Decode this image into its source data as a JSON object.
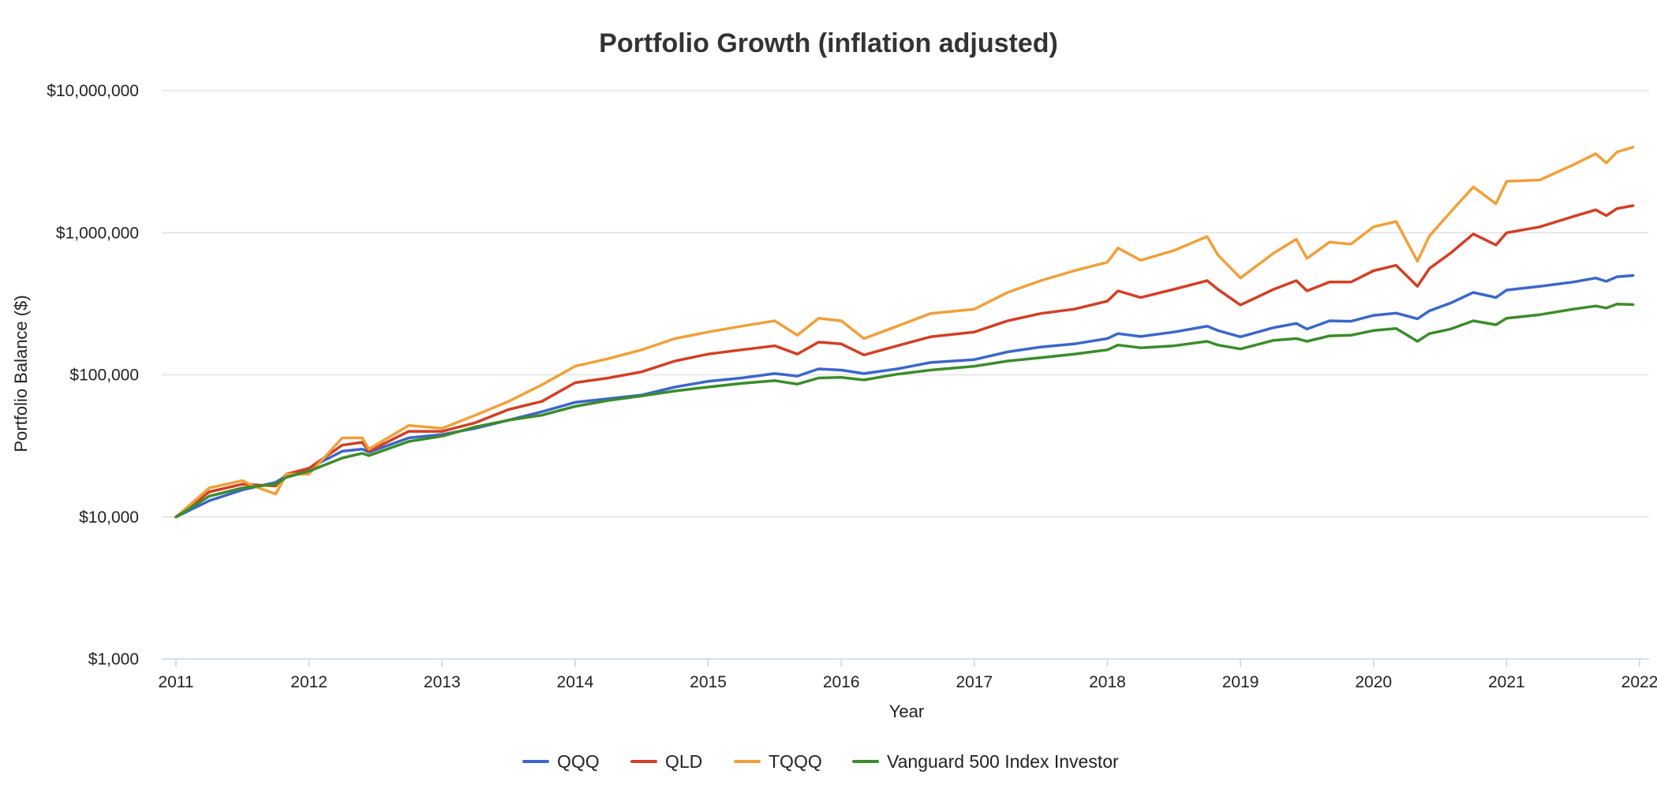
{
  "chart_data": {
    "type": "line",
    "title": "Portfolio Growth (inflation adjusted)",
    "xlabel": "Year",
    "ylabel": "Portfolio Balance ($)",
    "yscale": "log",
    "ylim": [
      1000,
      10000000
    ],
    "xlim": [
      2011,
      2022
    ],
    "x_ticks": [
      2011,
      2012,
      2013,
      2014,
      2015,
      2016,
      2017,
      2018,
      2019,
      2020,
      2021,
      2022
    ],
    "x_tick_labels": [
      "2011",
      "2012",
      "2013",
      "2014",
      "2015",
      "2016",
      "2017",
      "2018",
      "2019",
      "2020",
      "2021",
      "2022"
    ],
    "y_ticks": [
      1000,
      10000,
      100000,
      1000000,
      10000000
    ],
    "y_tick_labels": [
      "$1,000",
      "$10,000",
      "$100,000",
      "$1,000,000",
      "$10,000,000"
    ],
    "grid": true,
    "legend_position": "bottom",
    "series": [
      {
        "name": "QQQ",
        "color": "#3b67c9",
        "points": [
          [
            2011.0,
            10000
          ],
          [
            2011.25,
            13000
          ],
          [
            2011.5,
            15500
          ],
          [
            2011.75,
            17500
          ],
          [
            2011.83,
            19500
          ],
          [
            2012.0,
            22000
          ],
          [
            2012.25,
            29000
          ],
          [
            2012.4,
            30000
          ],
          [
            2012.45,
            28500
          ],
          [
            2012.75,
            36000
          ],
          [
            2013.0,
            38000
          ],
          [
            2013.25,
            42000
          ],
          [
            2013.5,
            48000
          ],
          [
            2013.75,
            55000
          ],
          [
            2014.0,
            64000
          ],
          [
            2014.25,
            68000
          ],
          [
            2014.5,
            72000
          ],
          [
            2014.75,
            82000
          ],
          [
            2015.0,
            90000
          ],
          [
            2015.25,
            95000
          ],
          [
            2015.5,
            102000
          ],
          [
            2015.67,
            98000
          ],
          [
            2015.83,
            110000
          ],
          [
            2016.0,
            108000
          ],
          [
            2016.17,
            102000
          ],
          [
            2016.42,
            110000
          ],
          [
            2016.67,
            122000
          ],
          [
            2017.0,
            128000
          ],
          [
            2017.25,
            145000
          ],
          [
            2017.5,
            157000
          ],
          [
            2017.75,
            165000
          ],
          [
            2018.0,
            180000
          ],
          [
            2018.08,
            195000
          ],
          [
            2018.25,
            186000
          ],
          [
            2018.5,
            200000
          ],
          [
            2018.75,
            220000
          ],
          [
            2018.83,
            205000
          ],
          [
            2019.0,
            185000
          ],
          [
            2019.25,
            215000
          ],
          [
            2019.42,
            230000
          ],
          [
            2019.5,
            210000
          ],
          [
            2019.67,
            240000
          ],
          [
            2019.83,
            238000
          ],
          [
            2020.0,
            262000
          ],
          [
            2020.17,
            272000
          ],
          [
            2020.33,
            248000
          ],
          [
            2020.42,
            282000
          ],
          [
            2020.58,
            320000
          ],
          [
            2020.75,
            380000
          ],
          [
            2020.92,
            350000
          ],
          [
            2021.0,
            395000
          ],
          [
            2021.25,
            420000
          ],
          [
            2021.5,
            450000
          ],
          [
            2021.67,
            480000
          ],
          [
            2021.75,
            455000
          ],
          [
            2021.83,
            490000
          ],
          [
            2021.95,
            500000
          ]
        ]
      },
      {
        "name": "QLD",
        "color": "#d23f24",
        "points": [
          [
            2011.0,
            10000
          ],
          [
            2011.25,
            15000
          ],
          [
            2011.5,
            17000
          ],
          [
            2011.75,
            16500
          ],
          [
            2011.83,
            20000
          ],
          [
            2012.0,
            22000
          ],
          [
            2012.25,
            32000
          ],
          [
            2012.4,
            33500
          ],
          [
            2012.45,
            29000
          ],
          [
            2012.75,
            40000
          ],
          [
            2013.0,
            40000
          ],
          [
            2013.25,
            46000
          ],
          [
            2013.5,
            57000
          ],
          [
            2013.75,
            65000
          ],
          [
            2014.0,
            88000
          ],
          [
            2014.25,
            95000
          ],
          [
            2014.5,
            105000
          ],
          [
            2014.75,
            125000
          ],
          [
            2015.0,
            140000
          ],
          [
            2015.25,
            150000
          ],
          [
            2015.5,
            160000
          ],
          [
            2015.67,
            140000
          ],
          [
            2015.83,
            170000
          ],
          [
            2016.0,
            165000
          ],
          [
            2016.17,
            138000
          ],
          [
            2016.42,
            160000
          ],
          [
            2016.67,
            185000
          ],
          [
            2017.0,
            200000
          ],
          [
            2017.25,
            240000
          ],
          [
            2017.5,
            270000
          ],
          [
            2017.75,
            290000
          ],
          [
            2018.0,
            330000
          ],
          [
            2018.08,
            390000
          ],
          [
            2018.25,
            350000
          ],
          [
            2018.5,
            400000
          ],
          [
            2018.75,
            460000
          ],
          [
            2018.83,
            400000
          ],
          [
            2019.0,
            310000
          ],
          [
            2019.25,
            400000
          ],
          [
            2019.42,
            460000
          ],
          [
            2019.5,
            390000
          ],
          [
            2019.67,
            450000
          ],
          [
            2019.83,
            450000
          ],
          [
            2020.0,
            540000
          ],
          [
            2020.17,
            590000
          ],
          [
            2020.33,
            420000
          ],
          [
            2020.42,
            560000
          ],
          [
            2020.58,
            720000
          ],
          [
            2020.75,
            980000
          ],
          [
            2020.92,
            820000
          ],
          [
            2021.0,
            1000000
          ],
          [
            2021.25,
            1100000
          ],
          [
            2021.5,
            1300000
          ],
          [
            2021.67,
            1450000
          ],
          [
            2021.75,
            1320000
          ],
          [
            2021.83,
            1480000
          ],
          [
            2021.95,
            1550000
          ]
        ]
      },
      {
        "name": "TQQQ",
        "color": "#f0a03a",
        "points": [
          [
            2011.0,
            10000
          ],
          [
            2011.25,
            16000
          ],
          [
            2011.5,
            18000
          ],
          [
            2011.58,
            16500
          ],
          [
            2011.75,
            14500
          ],
          [
            2011.83,
            20000
          ],
          [
            2012.0,
            20000
          ],
          [
            2012.25,
            36000
          ],
          [
            2012.4,
            36000
          ],
          [
            2012.45,
            30000
          ],
          [
            2012.75,
            44000
          ],
          [
            2013.0,
            42000
          ],
          [
            2013.25,
            52000
          ],
          [
            2013.5,
            65000
          ],
          [
            2013.75,
            85000
          ],
          [
            2014.0,
            115000
          ],
          [
            2014.25,
            130000
          ],
          [
            2014.5,
            150000
          ],
          [
            2014.75,
            180000
          ],
          [
            2015.0,
            200000
          ],
          [
            2015.25,
            220000
          ],
          [
            2015.5,
            240000
          ],
          [
            2015.67,
            190000
          ],
          [
            2015.83,
            250000
          ],
          [
            2016.0,
            240000
          ],
          [
            2016.17,
            180000
          ],
          [
            2016.42,
            220000
          ],
          [
            2016.67,
            270000
          ],
          [
            2017.0,
            290000
          ],
          [
            2017.25,
            380000
          ],
          [
            2017.5,
            460000
          ],
          [
            2017.75,
            540000
          ],
          [
            2018.0,
            620000
          ],
          [
            2018.08,
            780000
          ],
          [
            2018.25,
            640000
          ],
          [
            2018.5,
            750000
          ],
          [
            2018.75,
            940000
          ],
          [
            2018.83,
            700000
          ],
          [
            2019.0,
            480000
          ],
          [
            2019.25,
            720000
          ],
          [
            2019.42,
            900000
          ],
          [
            2019.5,
            660000
          ],
          [
            2019.67,
            860000
          ],
          [
            2019.83,
            830000
          ],
          [
            2020.0,
            1100000
          ],
          [
            2020.17,
            1200000
          ],
          [
            2020.33,
            630000
          ],
          [
            2020.42,
            950000
          ],
          [
            2020.58,
            1400000
          ],
          [
            2020.75,
            2100000
          ],
          [
            2020.92,
            1600000
          ],
          [
            2021.0,
            2300000
          ],
          [
            2021.25,
            2350000
          ],
          [
            2021.5,
            3000000
          ],
          [
            2021.67,
            3600000
          ],
          [
            2021.75,
            3100000
          ],
          [
            2021.83,
            3700000
          ],
          [
            2021.95,
            4000000
          ]
        ]
      },
      {
        "name": "Vanguard 500 Index Investor",
        "color": "#3b8c2a",
        "points": [
          [
            2011.0,
            10000
          ],
          [
            2011.25,
            14000
          ],
          [
            2011.5,
            16000
          ],
          [
            2011.75,
            17000
          ],
          [
            2011.83,
            19000
          ],
          [
            2012.0,
            21000
          ],
          [
            2012.25,
            26000
          ],
          [
            2012.4,
            28000
          ],
          [
            2012.45,
            27000
          ],
          [
            2012.75,
            34000
          ],
          [
            2013.0,
            37000
          ],
          [
            2013.25,
            43000
          ],
          [
            2013.5,
            48000
          ],
          [
            2013.75,
            52000
          ],
          [
            2014.0,
            60000
          ],
          [
            2014.25,
            66000
          ],
          [
            2014.5,
            71000
          ],
          [
            2014.75,
            77000
          ],
          [
            2015.0,
            82000
          ],
          [
            2015.25,
            87000
          ],
          [
            2015.5,
            91000
          ],
          [
            2015.67,
            86000
          ],
          [
            2015.83,
            95000
          ],
          [
            2016.0,
            96000
          ],
          [
            2016.17,
            92000
          ],
          [
            2016.42,
            101000
          ],
          [
            2016.67,
            108000
          ],
          [
            2017.0,
            115000
          ],
          [
            2017.25,
            125000
          ],
          [
            2017.5,
            132000
          ],
          [
            2017.75,
            140000
          ],
          [
            2018.0,
            150000
          ],
          [
            2018.08,
            162000
          ],
          [
            2018.25,
            155000
          ],
          [
            2018.5,
            160000
          ],
          [
            2018.75,
            172000
          ],
          [
            2018.83,
            162000
          ],
          [
            2019.0,
            152000
          ],
          [
            2019.25,
            175000
          ],
          [
            2019.42,
            180000
          ],
          [
            2019.5,
            172000
          ],
          [
            2019.67,
            188000
          ],
          [
            2019.83,
            190000
          ],
          [
            2020.0,
            205000
          ],
          [
            2020.17,
            212000
          ],
          [
            2020.33,
            172000
          ],
          [
            2020.42,
            195000
          ],
          [
            2020.58,
            210000
          ],
          [
            2020.75,
            240000
          ],
          [
            2020.92,
            225000
          ],
          [
            2021.0,
            250000
          ],
          [
            2021.25,
            265000
          ],
          [
            2021.5,
            290000
          ],
          [
            2021.67,
            305000
          ],
          [
            2021.75,
            295000
          ],
          [
            2021.83,
            315000
          ],
          [
            2021.95,
            312000
          ]
        ]
      }
    ]
  }
}
